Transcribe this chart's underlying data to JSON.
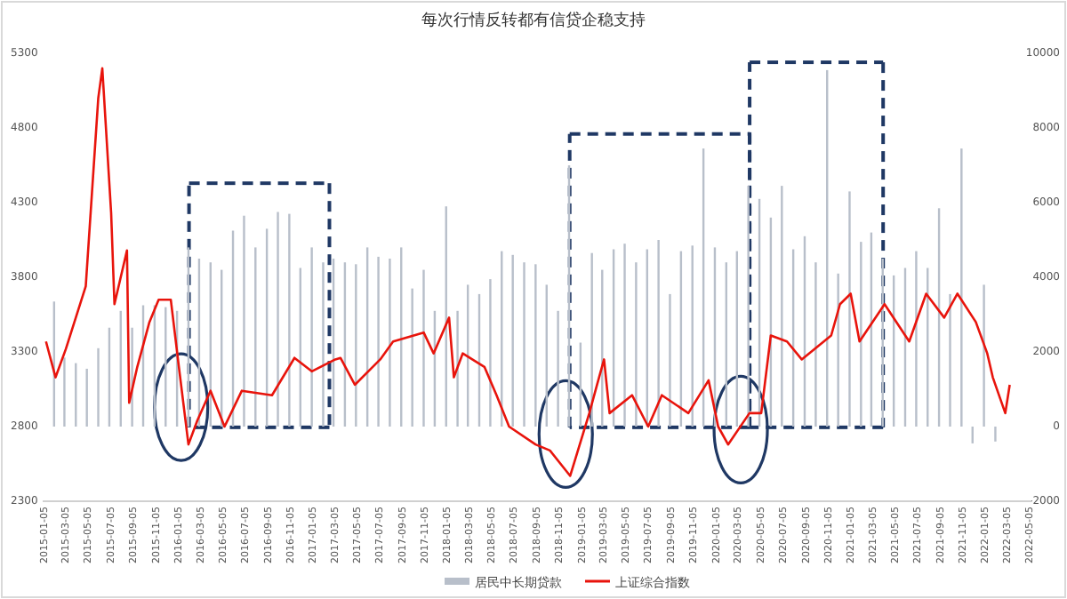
{
  "chart_data": {
    "type": "bar",
    "title": "每次行情反转都有信贷企稳支持",
    "xlim": [
      "2015-01-01",
      "2022-05-10"
    ],
    "xticks": [
      "2015-01-05",
      "2015-03-05",
      "2015-05-05",
      "2015-07-05",
      "2015-09-05",
      "2015-11-05",
      "2016-01-05",
      "2016-03-05",
      "2016-05-05",
      "2016-07-05",
      "2016-09-05",
      "2016-11-05",
      "2017-01-05",
      "2017-03-05",
      "2017-05-05",
      "2017-07-05",
      "2017-09-05",
      "2017-11-05",
      "2018-01-05",
      "2018-03-05",
      "2018-05-05",
      "2018-07-05",
      "2018-09-05",
      "2018-11-05",
      "2019-01-05",
      "2019-03-05",
      "2019-05-05",
      "2019-07-05",
      "2019-09-05",
      "2019-11-05",
      "2020-01-05",
      "2020-03-05",
      "2020-05-05",
      "2020-07-05",
      "2020-09-05",
      "2020-11-05",
      "2021-01-05",
      "2021-03-05",
      "2021-05-05",
      "2021-07-05",
      "2021-09-05",
      "2021-11-05",
      "2022-01-05",
      "2022-03-05",
      "2022-05-05"
    ],
    "ylim": [
      2300,
      5300
    ],
    "yticks": [
      2300,
      2800,
      3300,
      3800,
      4300,
      4800,
      5300
    ],
    "y2lim": [
      -2000,
      10000
    ],
    "y2ticks": [
      -2000,
      0,
      2000,
      4000,
      6000,
      8000,
      10000
    ],
    "legend": "bottom",
    "grid": false,
    "series": [
      {
        "name": "居民中长期贷款",
        "axis": "y2",
        "color": "#b8bfca",
        "x": [
          "2015-02",
          "2015-03",
          "2015-04",
          "2015-05",
          "2015-06",
          "2015-07",
          "2015-08",
          "2015-09",
          "2015-10",
          "2015-11",
          "2015-12",
          "2016-01",
          "2016-02",
          "2016-03",
          "2016-04",
          "2016-05",
          "2016-06",
          "2016-07",
          "2016-08",
          "2016-09",
          "2016-10",
          "2016-11",
          "2016-12",
          "2017-01",
          "2017-02",
          "2017-03",
          "2017-04",
          "2017-05",
          "2017-06",
          "2017-07",
          "2017-08",
          "2017-09",
          "2017-10",
          "2017-11",
          "2017-12",
          "2018-01",
          "2018-02",
          "2018-03",
          "2018-04",
          "2018-05",
          "2018-06",
          "2018-07",
          "2018-08",
          "2018-09",
          "2018-10",
          "2018-11",
          "2018-12",
          "2019-01",
          "2019-02",
          "2019-03",
          "2019-04",
          "2019-05",
          "2019-06",
          "2019-07",
          "2019-08",
          "2019-09",
          "2019-10",
          "2019-11",
          "2019-12",
          "2020-01",
          "2020-02",
          "2020-03",
          "2020-04",
          "2020-05",
          "2020-06",
          "2020-07",
          "2020-08",
          "2020-09",
          "2020-10",
          "2020-11",
          "2020-12",
          "2021-01",
          "2021-02",
          "2021-03",
          "2021-04",
          "2021-05",
          "2021-06",
          "2021-07",
          "2021-08",
          "2021-09",
          "2021-10",
          "2021-11",
          "2021-12",
          "2022-01",
          "2022-02"
        ],
        "values": [
          3350,
          1850,
          1700,
          1550,
          2100,
          2650,
          3100,
          2650,
          3250,
          3250,
          3200,
          3100,
          4800,
          4500,
          4400,
          4200,
          5250,
          5650,
          4800,
          5300,
          5750,
          5700,
          4250,
          4800,
          4400,
          4500,
          4400,
          4350,
          4800,
          4550,
          4500,
          4800,
          3700,
          4200,
          3100,
          5900,
          3100,
          3800,
          3550,
          3950,
          4700,
          4600,
          4400,
          4350,
          3800,
          3100,
          7000,
          2250,
          4650,
          4200,
          4750,
          4900,
          4400,
          4750,
          5000,
          3550,
          4700,
          4850,
          7450,
          4800,
          4400,
          4700,
          6450,
          6100,
          5600,
          6450,
          4750,
          5100,
          4400,
          9550,
          4100,
          6300,
          4950,
          5200,
          4500,
          4050,
          4250,
          4700,
          4250,
          5850,
          3550,
          7450,
          -450,
          3800,
          -400
        ]
      },
      {
        "name": "上证综合指数",
        "type": "line",
        "color": "#e8140c",
        "x": [
          "2015-01-10",
          "2015-02-05",
          "2015-03-05",
          "2015-04-28",
          "2015-06-01",
          "2015-06-12",
          "2015-07-06",
          "2015-07-15",
          "2015-08-18",
          "2015-08-24",
          "2015-09-15",
          "2015-10-18",
          "2015-11-12",
          "2015-12-15",
          "2016-01-06",
          "2016-02-01",
          "2016-02-25",
          "2016-04-01",
          "2016-05-09",
          "2016-06-25",
          "2016-09-15",
          "2016-11-15",
          "2017-01-01",
          "2017-03-06",
          "2017-03-20",
          "2017-04-28",
          "2017-07-06",
          "2017-08-10",
          "2017-11-01",
          "2017-11-28",
          "2018-01-09",
          "2018-01-22",
          "2018-02-15",
          "2018-04-15",
          "2018-05-18",
          "2018-06-21",
          "2018-09-01",
          "2018-10-10",
          "2018-12-04",
          "2019-01-25",
          "2019-02-15",
          "2019-03-06",
          "2019-03-21",
          "2019-05-21",
          "2019-07-04",
          "2019-08-10",
          "2019-10-21",
          "2019-12-15",
          "2020-01-10",
          "2020-02-06",
          "2020-04-04",
          "2020-05-06",
          "2020-06-01",
          "2020-07-15",
          "2020-08-24",
          "2020-11-12",
          "2020-12-06",
          "2021-01-04",
          "2021-01-28",
          "2021-04-06",
          "2021-06-12",
          "2021-07-28",
          "2021-09-15",
          "2021-10-21",
          "2021-12-10",
          "2022-01-10",
          "2022-01-25",
          "2022-02-28",
          "2022-03-12"
        ],
        "values": [
          3370,
          3130,
          3320,
          3740,
          5000,
          5200,
          4230,
          3620,
          3980,
          2960,
          3200,
          3500,
          3650,
          3650,
          3200,
          2680,
          2840,
          3040,
          2800,
          3040,
          3010,
          3260,
          3170,
          3250,
          3260,
          3080,
          3250,
          3370,
          3430,
          3290,
          3530,
          3130,
          3290,
          3200,
          3010,
          2800,
          2680,
          2640,
          2470,
          2890,
          3080,
          3250,
          2890,
          3010,
          2800,
          3010,
          2890,
          3110,
          2800,
          2680,
          2890,
          2890,
          3410,
          3370,
          3250,
          3410,
          3620,
          3690,
          3370,
          3620,
          3370,
          3690,
          3530,
          3690,
          3500,
          3290,
          3130,
          2890,
          3080
        ]
      }
    ]
  }
}
